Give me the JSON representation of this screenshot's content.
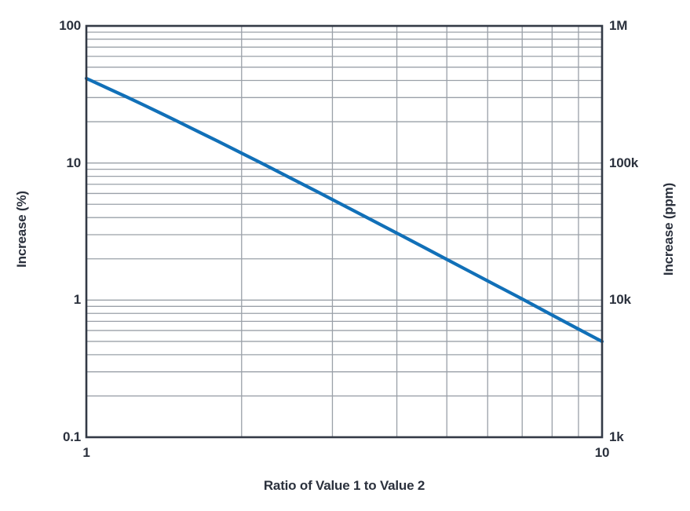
{
  "chart_data": {
    "type": "line",
    "title": "",
    "xlabel": "Ratio of Value 1 to Value 2",
    "ylabel_left": "Increase (%)",
    "ylabel_right": "Increase (ppm)",
    "x_scale": "log",
    "y_scale": "log",
    "xlim": [
      1,
      10
    ],
    "ylim_left": [
      0.1,
      100
    ],
    "ylim_right": [
      1000,
      1000000
    ],
    "grid": {
      "visible": true,
      "log_minor_divisions": true,
      "legend": "none"
    },
    "x_ticks": [
      {
        "value": 1,
        "label": "1"
      },
      {
        "value": 10,
        "label": "10"
      }
    ],
    "y_ticks_left": [
      {
        "value": 100,
        "label": "100"
      },
      {
        "value": 10,
        "label": "10"
      },
      {
        "value": 1,
        "label": "1"
      },
      {
        "value": 0.1,
        "label": "0.1"
      }
    ],
    "y_ticks_right": [
      {
        "value": 100,
        "label": "1M"
      },
      {
        "value": 10,
        "label": "100k"
      },
      {
        "value": 1,
        "label": "10k"
      },
      {
        "value": 0.1,
        "label": "1k"
      }
    ],
    "series": [
      {
        "name": "increase",
        "color": "#1170b8",
        "x": [
          1,
          1.1,
          1.2,
          1.3,
          1.4,
          1.5,
          1.6,
          1.8,
          2,
          2.2,
          2.5,
          2.8,
          3,
          3.5,
          4,
          4.5,
          5,
          5.5,
          6,
          7,
          8,
          9,
          10
        ],
        "y_percent": [
          41.4,
          35.1,
          30.2,
          26.2,
          22.9,
          20.2,
          17.9,
          14.4,
          11.8,
          9.85,
          7.7,
          6.19,
          5.41,
          4.0,
          3.08,
          2.44,
          1.98,
          1.64,
          1.38,
          1.02,
          0.778,
          0.615,
          0.499
        ]
      }
    ],
    "colors": {
      "line": "#1170b8",
      "grid": "#9aa0a8",
      "axis": "#333a46",
      "text": "#2b313d",
      "background": "#ffffff"
    }
  }
}
